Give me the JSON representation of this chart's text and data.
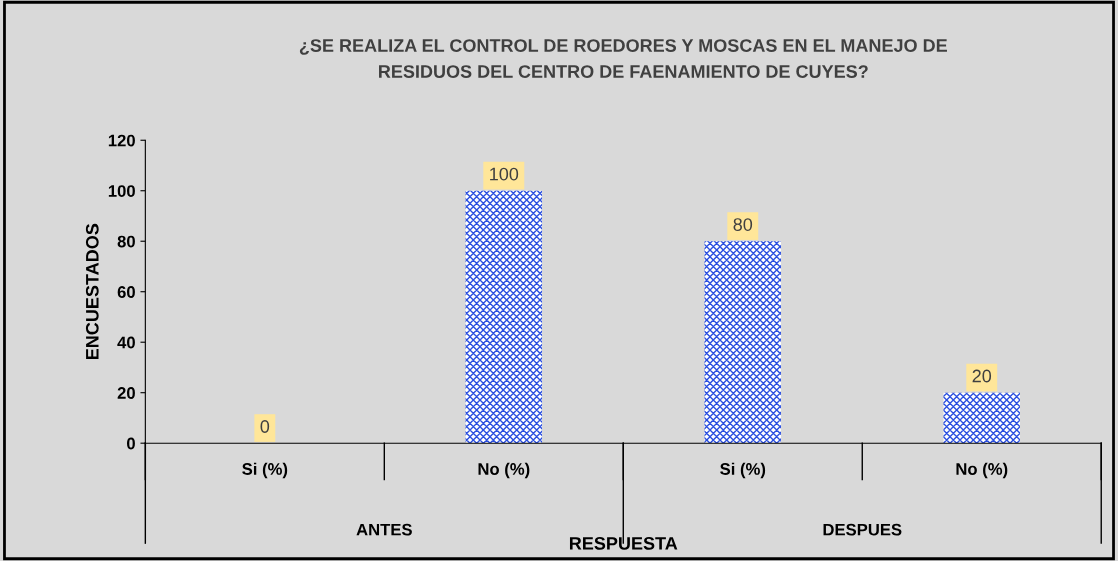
{
  "chart_data": {
    "type": "bar",
    "title": "¿SE REALIZA EL CONTROL DE ROEDORES Y MOSCAS EN EL MANEJO DE\nRESIDUOS DEL CENTRO DE FAENAMIENTO DE CUYES?",
    "xlabel": "RESPUESTA",
    "ylabel": "ENCUESTADOS",
    "categories": [
      "Si (%)",
      "No (%)",
      "Si (%)",
      "No (%)"
    ],
    "values": [
      0,
      100,
      80,
      20
    ],
    "color": "#2a4fe0",
    "ylim": [
      0,
      120
    ],
    "yticks": [
      0,
      20,
      40,
      60,
      80,
      100,
      120
    ],
    "data_labels": true,
    "grid": false,
    "legend": false,
    "annotations": [
      "ANTES",
      "DESPUES"
    ]
  }
}
